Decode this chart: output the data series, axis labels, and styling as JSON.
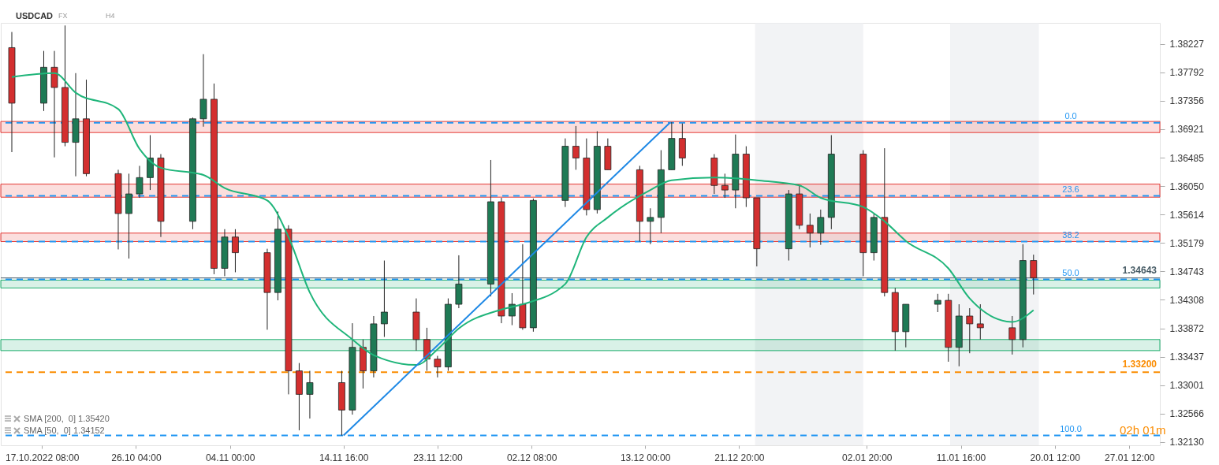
{
  "chart_data": {
    "type": "candlestick",
    "title": "USDCAD",
    "annotations": [
      "FX",
      "H4",
      "SMA [200,  0] 1.35420",
      "SMA [50,  0] 1.34152",
      "02h 01m",
      {
        "text": "0.0",
        "x": "2023-01-22T00:00",
        "y": 1.3702
      },
      {
        "text": "23.6",
        "x": "2023-01-22T00:00",
        "y": 1.359
      },
      {
        "text": "38.2",
        "x": "2023-01-22T00:00",
        "y": 1.352
      },
      {
        "text": "50.0",
        "x": "2023-01-22T00:00",
        "y": 1.3462
      },
      {
        "text": "100.0",
        "x": "2023-01-22T00:00",
        "y": 1.3223
      }
    ],
    "xlim": [
      "2022-10-13T20:00",
      "2023-01-30T00:00"
    ],
    "xticks": [
      {
        "value": "2022-10-17T08:00",
        "label": "17.10.2022  08:00"
      },
      {
        "value": "2022-10-26T04:00",
        "label": "26.10  04:00"
      },
      {
        "value": "2022-11-04T00:00",
        "label": "04.11  00:00"
      },
      {
        "value": "2022-11-14T16:00",
        "label": "14.11  16:00"
      },
      {
        "value": "2022-11-23T12:00",
        "label": "23.11  12:00"
      },
      {
        "value": "2022-12-02T08:00",
        "label": "02.12  08:00"
      },
      {
        "value": "2022-12-13T00:00",
        "label": "13.12  00:00"
      },
      {
        "value": "2022-12-21T20:00",
        "label": "21.12  20:00"
      },
      {
        "value": "2023-01-02T20:00",
        "label": "02.01  20:00"
      },
      {
        "value": "2023-01-11T16:00",
        "label": "11.01  16:00"
      },
      {
        "value": "2023-01-20T12:00",
        "label": "20.01  12:00"
      },
      {
        "value": "2023-01-27T12:00",
        "label": "27.01  12:00"
      }
    ],
    "ylim": [
      1.3208,
      1.3855
    ],
    "yticks": [
      {
        "value": 1.3213,
        "label": "1.32130"
      },
      1.32566,
      1.33001,
      1.33437,
      1.33872,
      1.34308,
      1.34743,
      1.35179,
      1.35614,
      {
        "value": 1.3605,
        "label": "1.36050"
      },
      1.36485,
      1.36921,
      1.37356,
      1.37792,
      1.38227
    ],
    "bands": [
      {
        "axis": "x",
        "from": "2022-12-23T08:00",
        "to": "2023-01-02T12:00",
        "label": null,
        "color": "#eceef1"
      },
      {
        "axis": "x",
        "from": "2023-01-10T16:00",
        "to": "2023-01-19T00:00",
        "label": null,
        "color": "#eceef1"
      },
      {
        "axis": "y",
        "from": 1.3687,
        "to": 1.3704,
        "label": null,
        "color": "#e53935"
      },
      {
        "axis": "y",
        "from": 1.3588,
        "to": 1.3608,
        "label": null,
        "color": "#e53935"
      },
      {
        "axis": "y",
        "from": 1.352,
        "to": 1.3533,
        "label": null,
        "color": "#e53935"
      },
      {
        "axis": "y",
        "from": 1.3449,
        "to": 1.3461,
        "label": null,
        "color": "#1fae6e"
      },
      {
        "axis": "y",
        "from": 1.3353,
        "to": 1.337,
        "label": null,
        "color": "#1fae6e"
      }
    ],
    "ref_lines": [
      {
        "axis": "y",
        "value": 1.3702,
        "color": "#2196f3",
        "line_style": "dashed"
      },
      {
        "axis": "y",
        "value": 1.359,
        "color": "#2196f3",
        "line_style": "dashed"
      },
      {
        "axis": "y",
        "value": 1.352,
        "color": "#2196f3",
        "line_style": "dashed"
      },
      {
        "axis": "y",
        "value": 1.3462,
        "color": "#2196f3",
        "line_style": "dashed"
      },
      {
        "axis": "y",
        "value": 1.3223,
        "color": "#2196f3",
        "line_style": "dashed"
      },
      {
        "axis": "y",
        "value": 1.332,
        "label": "1.33200",
        "color": "#fb8c00",
        "line_style": "dashed"
      },
      {
        "axis": "y",
        "value": 1.34643,
        "label": "1.34643",
        "color": "#455a64",
        "line_style": "solid"
      }
    ],
    "series": [
      {
        "type": "line",
        "color": "#1fb57a",
        "x": [
          "2022-10-14T12:00",
          "2022-10-18T12:00",
          "2022-10-20T12:00",
          "2022-10-24T12:00",
          "2022-10-26T12:00",
          "2022-10-28T12:00",
          "2022-11-01T12:00",
          "2022-11-03T12:00",
          "2022-11-07T12:00",
          "2022-11-09T12:00",
          "2022-11-11T12:00",
          "2022-11-15T12:00",
          "2022-11-17T12:00",
          "2022-11-21T12:00",
          "2022-11-23T12:00",
          "2022-11-25T12:00",
          "2022-11-29T12:00",
          "2022-12-01T12:00",
          "2022-12-05T12:00",
          "2022-12-07T12:00",
          "2022-12-09T12:00",
          "2022-12-13T12:00",
          "2022-12-15T12:00",
          "2022-12-19T12:00",
          "2022-12-21T12:00",
          "2022-12-23T12:00",
          "2022-12-27T12:00",
          "2022-12-29T12:00",
          "2023-01-02T12:00",
          "2023-01-04T12:00",
          "2023-01-06T12:00",
          "2023-01-10T12:00",
          "2023-01-12T12:00",
          "2023-01-16T12:00",
          "2023-01-18T12:00"
        ],
        "values": [
          1.3772,
          1.3778,
          1.3748,
          1.3723,
          1.3662,
          1.3633,
          1.3622,
          1.3602,
          1.3583,
          1.3527,
          1.3442,
          1.337,
          1.3346,
          1.3331,
          1.3355,
          1.3387,
          1.3416,
          1.3424,
          1.3455,
          1.3527,
          1.3557,
          1.3599,
          1.3614,
          1.3618,
          1.3617,
          1.3614,
          1.3606,
          1.3587,
          1.3573,
          1.3551,
          1.3521,
          1.3479,
          1.3433,
          1.3397,
          1.3415
        ]
      },
      {
        "type": "line",
        "color": "#1e88e5",
        "x": [
          "2022-11-14T16:00",
          "2022-12-15T08:00"
        ],
        "values": [
          1.3223,
          1.3702
        ]
      },
      {
        "type": "candlestick",
        "x": [
          "2022-10-14T12:00",
          "2022-10-17T12:00",
          "2022-10-18T12:00",
          "2022-10-19T12:00",
          "2022-10-20T12:00",
          "2022-10-21T12:00",
          "2022-10-24T12:00",
          "2022-10-25T12:00",
          "2022-10-26T12:00",
          "2022-10-27T12:00",
          "2022-10-28T12:00",
          "2022-10-31T12:00",
          "2022-11-01T12:00",
          "2022-11-02T12:00",
          "2022-11-03T12:00",
          "2022-11-04T12:00",
          "2022-11-07T12:00",
          "2022-11-08T12:00",
          "2022-11-09T12:00",
          "2022-11-10T12:00",
          "2022-11-11T12:00",
          "2022-11-14T12:00",
          "2022-11-15T12:00",
          "2022-11-16T12:00",
          "2022-11-17T12:00",
          "2022-11-18T12:00",
          "2022-11-21T12:00",
          "2022-11-22T12:00",
          "2022-11-23T12:00",
          "2022-11-24T12:00",
          "2022-11-25T12:00",
          "2022-11-28T12:00",
          "2022-11-29T12:00",
          "2022-11-30T12:00",
          "2022-12-01T12:00",
          "2022-12-02T12:00",
          "2022-12-05T12:00",
          "2022-12-06T12:00",
          "2022-12-07T12:00",
          "2022-12-08T12:00",
          "2022-12-09T12:00",
          "2022-12-12T12:00",
          "2022-12-13T12:00",
          "2022-12-14T12:00",
          "2022-12-15T12:00",
          "2022-12-16T12:00",
          "2022-12-19T12:00",
          "2022-12-20T12:00",
          "2022-12-21T12:00",
          "2022-12-22T12:00",
          "2022-12-23T12:00",
          "2022-12-26T12:00",
          "2022-12-27T12:00",
          "2022-12-28T12:00",
          "2022-12-29T12:00",
          "2022-12-30T12:00",
          "2023-01-02T12:00",
          "2023-01-03T12:00",
          "2023-01-04T12:00",
          "2023-01-05T12:00",
          "2023-01-06T12:00",
          "2023-01-09T12:00",
          "2023-01-10T12:00",
          "2023-01-11T12:00",
          "2023-01-12T12:00",
          "2023-01-13T12:00",
          "2023-01-16T12:00",
          "2023-01-17T12:00",
          "2023-01-18T12:00"
        ],
        "ohlc": [
          [
            1.3817,
            1.3841,
            1.3657,
            1.3732
          ],
          [
            1.3732,
            1.3812,
            1.372,
            1.3787
          ],
          [
            1.3787,
            1.3812,
            1.3649,
            1.3756
          ],
          [
            1.3756,
            1.3851,
            1.3666,
            1.3672
          ],
          [
            1.3672,
            1.3778,
            1.362,
            1.3708
          ],
          [
            1.3708,
            1.3768,
            1.362,
            1.3624
          ],
          [
            1.3624,
            1.363,
            1.3508,
            1.3563
          ],
          [
            1.3563,
            1.3624,
            1.3494,
            1.3593
          ],
          [
            1.3593,
            1.3636,
            1.3587,
            1.3618
          ],
          [
            1.3618,
            1.3683,
            1.3599,
            1.3648
          ],
          [
            1.3648,
            1.3654,
            1.3527,
            1.3551
          ],
          [
            1.3551,
            1.371,
            1.3539,
            1.3708
          ],
          [
            1.3708,
            1.3807,
            1.3696,
            1.3738
          ],
          [
            1.3738,
            1.3762,
            1.347,
            1.3479
          ],
          [
            1.3479,
            1.3539,
            1.3467,
            1.3527
          ],
          [
            1.3527,
            1.3539,
            1.3473,
            1.3503
          ],
          [
            1.3503,
            1.3509,
            1.3385,
            1.3442
          ],
          [
            1.3442,
            1.3566,
            1.343,
            1.3539
          ],
          [
            1.3539,
            1.3545,
            1.3286,
            1.3322
          ],
          [
            1.3322,
            1.3334,
            1.3231,
            1.3286
          ],
          [
            1.3286,
            1.3322,
            1.3249,
            1.3304
          ],
          [
            1.3304,
            1.3322,
            1.3223,
            1.3262
          ],
          [
            1.3262,
            1.3395,
            1.3255,
            1.3358
          ],
          [
            1.3358,
            1.337,
            1.3295,
            1.3322
          ],
          [
            1.3322,
            1.3406,
            1.3312,
            1.3394
          ],
          [
            1.3394,
            1.3491,
            1.3374,
            1.3412
          ],
          [
            1.3412,
            1.3433,
            1.3353,
            1.337
          ],
          [
            1.337,
            1.3388,
            1.3322,
            1.334
          ],
          [
            1.334,
            1.3345,
            1.3312,
            1.3328
          ],
          [
            1.3328,
            1.3433,
            1.3322,
            1.3424
          ],
          [
            1.3424,
            1.3499,
            1.3418,
            1.3455
          ],
          [
            1.3455,
            1.3645,
            1.3436,
            1.3581
          ],
          [
            1.3581,
            1.3587,
            1.3395,
            1.3406
          ],
          [
            1.3406,
            1.3441,
            1.3392,
            1.3424
          ],
          [
            1.3424,
            1.3516,
            1.3385,
            1.3388
          ],
          [
            1.3388,
            1.3586,
            1.3382,
            1.3583
          ],
          [
            1.3583,
            1.3678,
            1.3573,
            1.3666
          ],
          [
            1.3666,
            1.3697,
            1.363,
            1.3648
          ],
          [
            1.3648,
            1.3678,
            1.356,
            1.3569
          ],
          [
            1.3569,
            1.3689,
            1.3563,
            1.3666
          ],
          [
            1.3666,
            1.3678,
            1.363,
            1.363
          ],
          [
            1.363,
            1.3636,
            1.352,
            1.3551
          ],
          [
            1.3551,
            1.3571,
            1.3516,
            1.3557
          ],
          [
            1.3557,
            1.366,
            1.3533,
            1.363
          ],
          [
            1.363,
            1.3703,
            1.363,
            1.3678
          ],
          [
            1.3678,
            1.3701,
            1.3636,
            1.3648
          ],
          [
            1.3648,
            1.3654,
            1.3593,
            1.3606
          ],
          [
            1.3606,
            1.3624,
            1.3587,
            1.3599
          ],
          [
            1.3599,
            1.3684,
            1.3571,
            1.3654
          ],
          [
            1.3654,
            1.3666,
            1.3573,
            1.3587
          ],
          [
            1.3587,
            1.3587,
            1.3482,
            1.3509
          ],
          [
            1.3509,
            1.3599,
            1.3491,
            1.3593
          ],
          [
            1.3593,
            1.3606,
            1.3539,
            1.3545
          ],
          [
            1.3545,
            1.3563,
            1.3511,
            1.3533
          ],
          [
            1.3533,
            1.3569,
            1.3515,
            1.3557
          ],
          [
            1.3557,
            1.3683,
            1.3539,
            1.3654
          ],
          [
            1.3654,
            1.366,
            1.3467,
            1.3503
          ],
          [
            1.3503,
            1.3563,
            1.3491,
            1.3557
          ],
          [
            1.3557,
            1.3663,
            1.3436,
            1.3442
          ],
          [
            1.3442,
            1.3449,
            1.3353,
            1.3382
          ],
          [
            1.3382,
            1.3424,
            1.3358,
            1.3424
          ],
          [
            1.3424,
            1.344,
            1.3412,
            1.343
          ],
          [
            1.343,
            1.344,
            1.3336,
            1.3358
          ],
          [
            1.3358,
            1.3424,
            1.3329,
            1.3406
          ],
          [
            1.3406,
            1.3418,
            1.3349,
            1.3394
          ],
          [
            1.3394,
            1.3424,
            1.337,
            1.3388
          ],
          [
            1.3388,
            1.3406,
            1.3347,
            1.337
          ],
          [
            1.337,
            1.3516,
            1.3358,
            1.3491
          ],
          [
            1.3491,
            1.35,
            1.3439,
            1.34643
          ]
        ],
        "colors": [
          "#d32f2f",
          "#1f7a55",
          "#d32f2f",
          "#d32f2f",
          "#1f7a55",
          "#d32f2f",
          "#d32f2f",
          "#1f7a55",
          "#1f7a55",
          "#1f7a55",
          "#d32f2f",
          "#1f7a55",
          "#1f7a55",
          "#d32f2f",
          "#1f7a55",
          "#d32f2f",
          "#d32f2f",
          "#1f7a55",
          "#d32f2f",
          "#d32f2f",
          "#1f7a55",
          "#d32f2f",
          "#1f7a55",
          "#d32f2f",
          "#1f7a55",
          "#1f7a55",
          "#d32f2f",
          "#d32f2f",
          "#d32f2f",
          "#1f7a55",
          "#1f7a55",
          "#1f7a55",
          "#d32f2f",
          "#1f7a55",
          "#d32f2f",
          "#1f7a55",
          "#1f7a55",
          "#d32f2f",
          "#d32f2f",
          "#1f7a55",
          "#d32f2f",
          "#d32f2f",
          "#1f7a55",
          "#1f7a55",
          "#1f7a55",
          "#d32f2f",
          "#d32f2f",
          "#d32f2f",
          "#1f7a55",
          "#d32f2f",
          "#d32f2f",
          "#1f7a55",
          "#d32f2f",
          "#d32f2f",
          "#1f7a55",
          "#1f7a55",
          "#d32f2f",
          "#1f7a55",
          "#d32f2f",
          "#d32f2f",
          "#1f7a55",
          "#1f7a55",
          "#d32f2f",
          "#1f7a55",
          "#d32f2f",
          "#d32f2f",
          "#d32f2f",
          "#1f7a55",
          "#d32f2f"
        ]
      }
    ]
  }
}
